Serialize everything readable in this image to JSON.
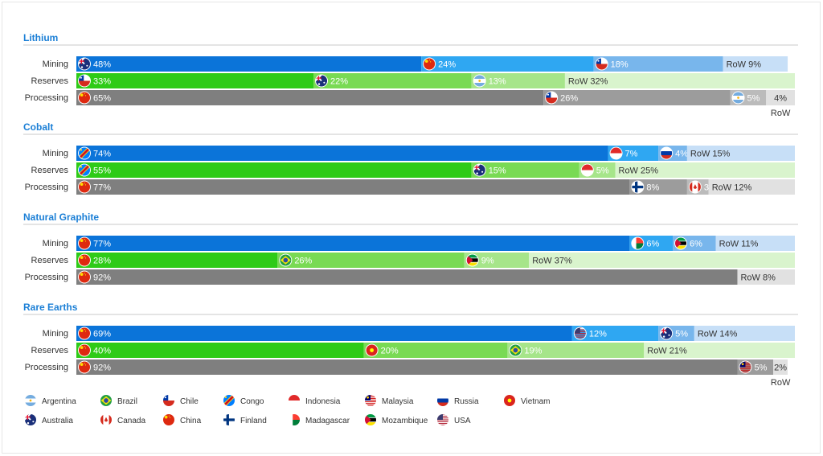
{
  "colors": {
    "accent": "#1b7fd6",
    "mining": [
      "#0b74d9",
      "#2fa7f2",
      "#78b6ec",
      "#c7dff7"
    ],
    "reserves": [
      "#2ecb17",
      "#79da54",
      "#a6e58a",
      "#d9f4cd"
    ],
    "processing": [
      "#7f7f7f",
      "#9c9c9c",
      "#bbbbbb",
      "#e1e1e1"
    ]
  },
  "chart_data": {
    "type": "bar",
    "orientation": "horizontal-stacked-100",
    "row_labels": [
      "Mining",
      "Reserves",
      "Processing"
    ],
    "sections": [
      {
        "title": "Lithium",
        "rows": [
          {
            "label": "Mining",
            "segments": [
              {
                "country": "Australia",
                "value": 48,
                "text": "48%"
              },
              {
                "country": "China",
                "value": 24,
                "text": "24%"
              },
              {
                "country": "Chile",
                "value": 18,
                "text": "18%"
              },
              {
                "country": "RoW",
                "value": 9,
                "text": "RoW 9%"
              }
            ]
          },
          {
            "label": "Reserves",
            "segments": [
              {
                "country": "Chile",
                "value": 33,
                "text": "33%"
              },
              {
                "country": "Australia",
                "value": 22,
                "text": "22%"
              },
              {
                "country": "Argentina",
                "value": 13,
                "text": "13%"
              },
              {
                "country": "RoW",
                "value": 32,
                "text": "RoW 32%"
              }
            ]
          },
          {
            "label": "Processing",
            "segments": [
              {
                "country": "China",
                "value": 65,
                "text": "65%"
              },
              {
                "country": "Chile",
                "value": 26,
                "text": "26%"
              },
              {
                "country": "Argentina",
                "value": 5,
                "text": "5%"
              },
              {
                "country": "RoW",
                "value": 4,
                "text": "4%",
                "below": "RoW"
              }
            ]
          }
        ]
      },
      {
        "title": "Cobalt",
        "rows": [
          {
            "label": "Mining",
            "segments": [
              {
                "country": "Congo",
                "value": 74,
                "text": "74%"
              },
              {
                "country": "Indonesia",
                "value": 7,
                "text": "7%"
              },
              {
                "country": "Russia",
                "value": 4,
                "text": "4%"
              },
              {
                "country": "RoW",
                "value": 15,
                "text": "RoW 15%"
              }
            ]
          },
          {
            "label": "Reserves",
            "segments": [
              {
                "country": "Congo",
                "value": 55,
                "text": "55%"
              },
              {
                "country": "Australia",
                "value": 15,
                "text": "15%"
              },
              {
                "country": "Indonesia",
                "value": 5,
                "text": "5%"
              },
              {
                "country": "RoW",
                "value": 25,
                "text": "RoW 25%"
              }
            ]
          },
          {
            "label": "Processing",
            "segments": [
              {
                "country": "China",
                "value": 77,
                "text": "77%"
              },
              {
                "country": "Finland",
                "value": 8,
                "text": "8%"
              },
              {
                "country": "Canada",
                "value": 3,
                "text": "3%"
              },
              {
                "country": "RoW",
                "value": 12,
                "text": "RoW 12%"
              }
            ]
          }
        ]
      },
      {
        "title": "Natural Graphite",
        "rows": [
          {
            "label": "Mining",
            "segments": [
              {
                "country": "China",
                "value": 77,
                "text": "77%"
              },
              {
                "country": "Madagascar",
                "value": 6,
                "text": "6%"
              },
              {
                "country": "Mozambique",
                "value": 6,
                "text": "6%"
              },
              {
                "country": "RoW",
                "value": 11,
                "text": "RoW 11%"
              }
            ]
          },
          {
            "label": "Reserves",
            "segments": [
              {
                "country": "China",
                "value": 28,
                "text": "28%"
              },
              {
                "country": "Brazil",
                "value": 26,
                "text": "26%"
              },
              {
                "country": "Mozambique",
                "value": 9,
                "text": "9%"
              },
              {
                "country": "RoW",
                "value": 37,
                "text": "RoW 37%"
              }
            ]
          },
          {
            "label": "Processing",
            "segments": [
              {
                "country": "China",
                "value": 92,
                "text": "92%"
              },
              {
                "country": "RoW",
                "value": 8,
                "text": "RoW 8%"
              }
            ]
          }
        ]
      },
      {
        "title": "Rare Earths",
        "rows": [
          {
            "label": "Mining",
            "segments": [
              {
                "country": "China",
                "value": 69,
                "text": "69%"
              },
              {
                "country": "USA",
                "value": 12,
                "text": "12%"
              },
              {
                "country": "Australia",
                "value": 5,
                "text": "5%"
              },
              {
                "country": "RoW",
                "value": 14,
                "text": "RoW 14%"
              }
            ]
          },
          {
            "label": "Reserves",
            "segments": [
              {
                "country": "China",
                "value": 40,
                "text": "40%"
              },
              {
                "country": "Vietnam",
                "value": 20,
                "text": "20%"
              },
              {
                "country": "Brazil",
                "value": 19,
                "text": "19%"
              },
              {
                "country": "RoW",
                "value": 21,
                "text": "RoW 21%"
              }
            ]
          },
          {
            "label": "Processing",
            "segments": [
              {
                "country": "China",
                "value": 92,
                "text": "92%"
              },
              {
                "country": "Malaysia",
                "value": 5,
                "text": "5%"
              },
              {
                "country": "RoW",
                "value": 2,
                "text": "2%",
                "below": "RoW"
              }
            ]
          }
        ]
      }
    ],
    "legend": [
      [
        "Argentina",
        "Brazil",
        "Chile",
        "Congo",
        "Indonesia",
        "Malaysia",
        "Russia",
        "Vietnam"
      ],
      [
        "Australia",
        "Canada",
        "China",
        "Finland",
        "Madagascar",
        "Mozambique",
        "USA"
      ]
    ]
  }
}
